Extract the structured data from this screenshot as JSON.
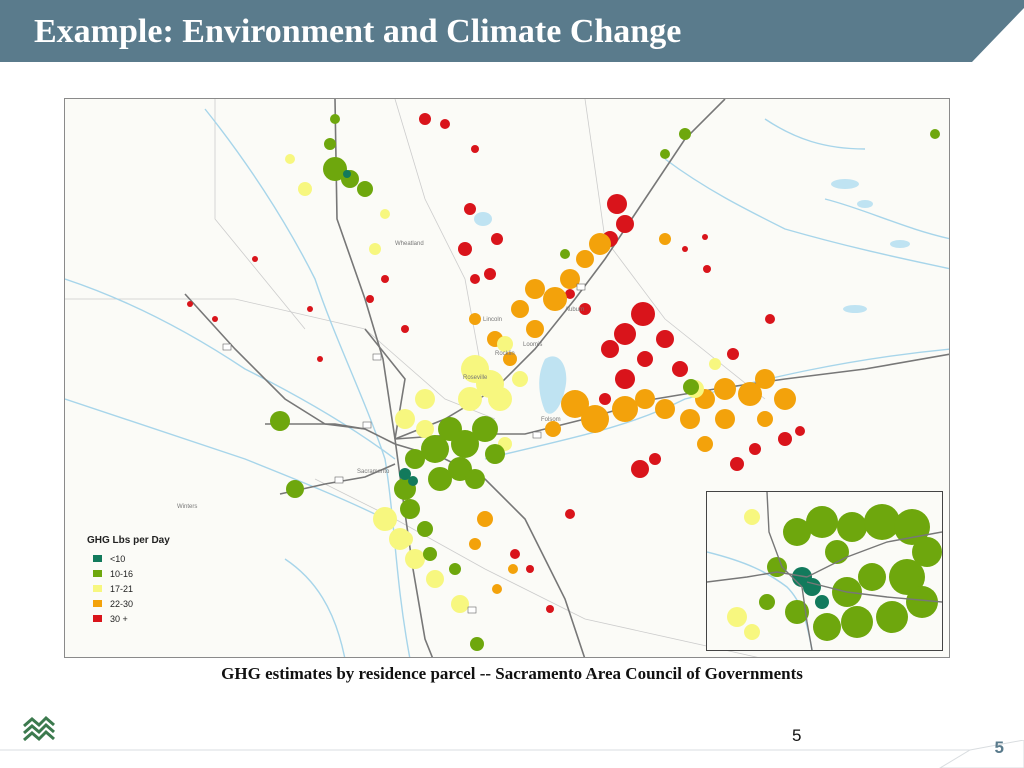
{
  "slide": {
    "title": "Example: Environment and Climate Change",
    "caption": "GHG estimates by residence parcel -- Sacramento Area Council of Governments",
    "page_number_center": "5",
    "page_number_corner": "5"
  },
  "colors": {
    "title_bar": "#5a7b8c",
    "dark_green": "#127a5c",
    "green": "#6ea70d",
    "yellow": "#f7f77f",
    "orange": "#f3a20b",
    "red": "#d9141b",
    "water": "#bfe3f2",
    "road": "#777777"
  },
  "map": {
    "legend": {
      "title": "GHG Lbs per Day",
      "items": [
        {
          "label": "<10",
          "color": "#127a5c"
        },
        {
          "label": "10-16",
          "color": "#6ea70d"
        },
        {
          "label": "17-21",
          "color": "#f7f77f"
        },
        {
          "label": "22-30",
          "color": "#f3a20b"
        },
        {
          "label": "30 +",
          "color": "#d9141b"
        }
      ]
    },
    "place_labels": [
      "Wheatland",
      "Lincoln",
      "Loomis",
      "Rocklin",
      "Roseville",
      "Auburn",
      "Folsom",
      "Sacramento",
      "Winters"
    ],
    "inset": {
      "description_icon": "downtown-inset-map"
    }
  }
}
